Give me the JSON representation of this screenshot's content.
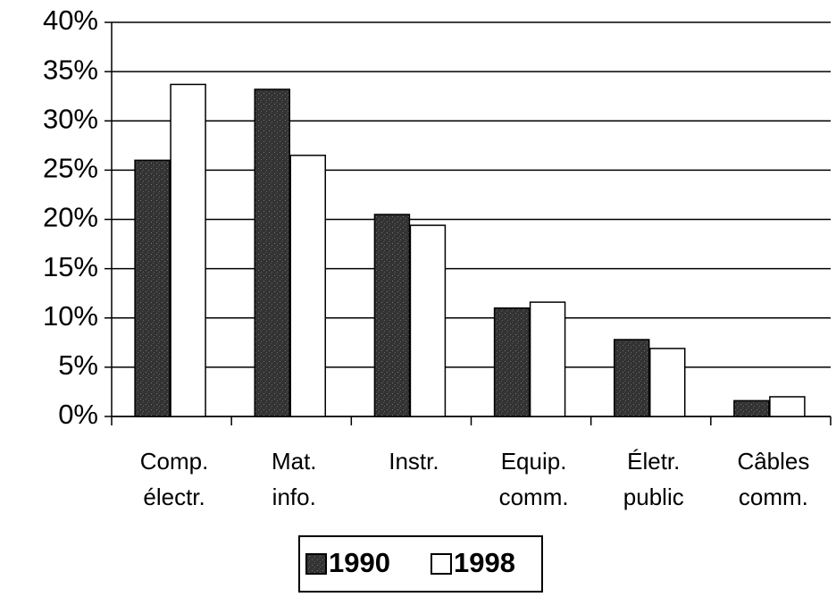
{
  "chart_data": {
    "type": "bar",
    "categories": [
      [
        "Comp.",
        "électr."
      ],
      [
        "Mat.",
        "info."
      ],
      [
        "Instr."
      ],
      [
        "Equip.",
        "comm."
      ],
      [
        "Életr.",
        "public"
      ],
      [
        "Câbles",
        "comm."
      ]
    ],
    "series": [
      {
        "name": "1990",
        "color": "#3a3a3a",
        "values": [
          26,
          33.2,
          20.5,
          11,
          7.8,
          1.6
        ]
      },
      {
        "name": "1998",
        "color": "#ffffff",
        "values": [
          33.7,
          26.5,
          19.4,
          11.6,
          6.9,
          2.0
        ]
      }
    ],
    "ylim": [
      0,
      40
    ],
    "yticks": [
      {
        "value": 0,
        "label": "0%"
      },
      {
        "value": 5,
        "label": "5%"
      },
      {
        "value": 10,
        "label": "10%"
      },
      {
        "value": 15,
        "label": "15%"
      },
      {
        "value": 20,
        "label": "20%"
      },
      {
        "value": 25,
        "label": "25%"
      },
      {
        "value": 30,
        "label": "30%"
      },
      {
        "value": 35,
        "label": "35%"
      },
      {
        "value": 40,
        "label": "40%"
      }
    ],
    "grid": true,
    "legend": "bottom"
  }
}
